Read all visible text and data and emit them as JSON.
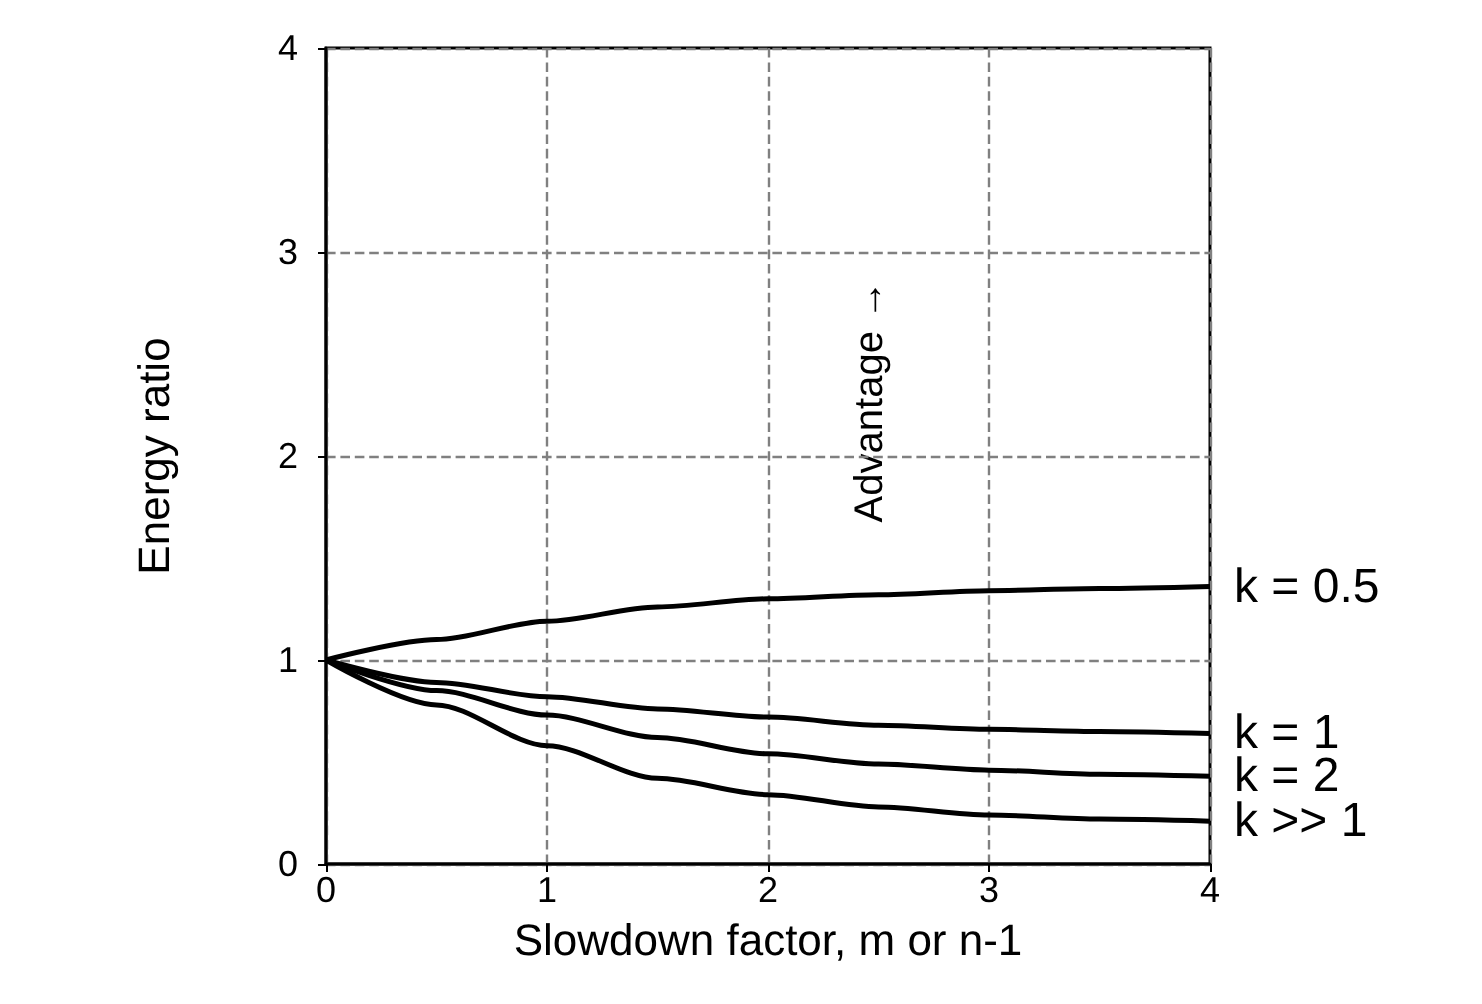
{
  "chart_data": {
    "type": "line",
    "xlabel": "Slowdown factor, m or n-1",
    "ylabel": "Energy ratio",
    "x": [
      0,
      0.5,
      1,
      1.5,
      2,
      2.5,
      3,
      3.5,
      4
    ],
    "series": [
      {
        "name": "k = 0.5",
        "color": "#000000",
        "values": [
          1,
          1.1,
          1.19,
          1.26,
          1.3,
          1.32,
          1.34,
          1.35,
          1.36
        ]
      },
      {
        "name": "k = 1",
        "color": "#000000",
        "values": [
          1,
          0.89,
          0.82,
          0.76,
          0.72,
          0.68,
          0.66,
          0.65,
          0.64
        ]
      },
      {
        "name": "k = 2",
        "color": "#000000",
        "values": [
          1,
          0.85,
          0.73,
          0.62,
          0.54,
          0.49,
          0.46,
          0.44,
          0.43
        ]
      },
      {
        "name": "k >> 1",
        "color": "#000000",
        "values": [
          1,
          0.78,
          0.58,
          0.42,
          0.34,
          0.28,
          0.24,
          0.22,
          0.21
        ]
      }
    ],
    "annotations": [
      "Advantage →"
    ],
    "xlim": [
      0,
      4
    ],
    "ylim": [
      0,
      4
    ],
    "xticks": [
      0,
      1,
      2,
      3,
      4
    ],
    "yticks": [
      0,
      1,
      2,
      3,
      4
    ],
    "grid": true,
    "legend": false,
    "marker": "none",
    "line_style": "solid"
  }
}
